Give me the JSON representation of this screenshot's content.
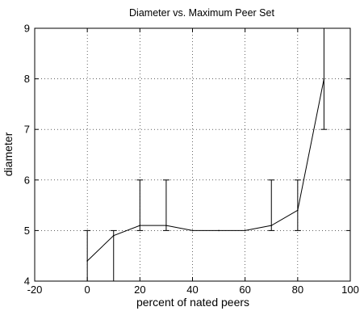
{
  "chart_data": {
    "type": "line",
    "title": "Diameter vs. Maximum Peer Set",
    "xlabel": "percent of nated peers",
    "ylabel": "diameter",
    "xlim": [
      -20,
      100
    ],
    "ylim": [
      4,
      9
    ],
    "xticks": [
      -20,
      0,
      20,
      40,
      60,
      80,
      100
    ],
    "yticks": [
      4,
      5,
      6,
      7,
      8,
      9
    ],
    "grid": true,
    "legend": "none",
    "series": [
      {
        "x": [
          0,
          10,
          20,
          30,
          40,
          50,
          60,
          70,
          80,
          90
        ],
        "y": [
          4.4,
          4.9,
          5.1,
          5.1,
          5.0,
          5.0,
          5.0,
          5.1,
          5.4,
          8.0
        ],
        "error_low": [
          4.0,
          4.0,
          5.0,
          5.0,
          5.0,
          5.0,
          5.0,
          5.0,
          5.0,
          7.0
        ],
        "error_high": [
          5.0,
          5.0,
          6.0,
          6.0,
          5.0,
          5.0,
          5.0,
          6.0,
          6.0,
          9.0
        ]
      }
    ]
  }
}
